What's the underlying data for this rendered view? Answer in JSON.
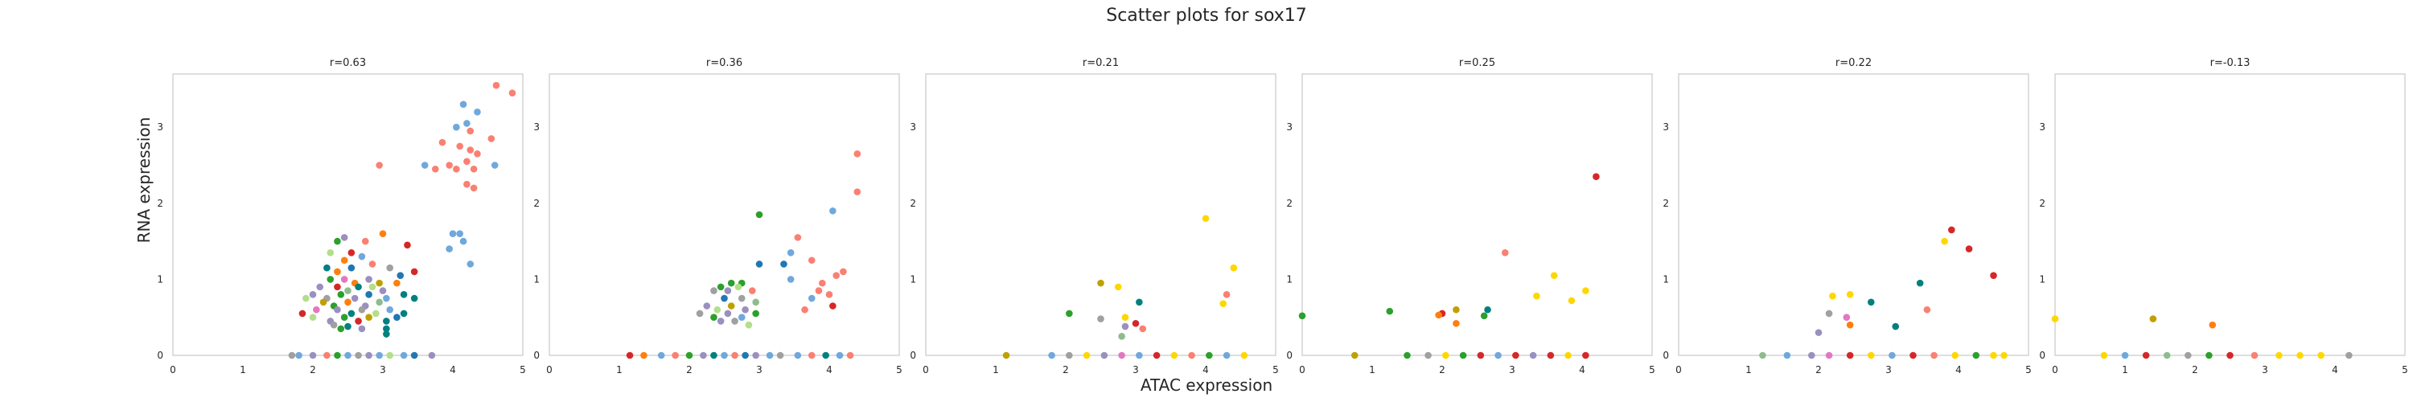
{
  "figure": {
    "title": "Scatter plots for sox17",
    "xlabel": "ATAC expression",
    "ylabel": "RNA expression"
  },
  "palette": [
    "#fa8072",
    "#6fa8dc",
    "#9b8fc0",
    "#2ca02c",
    "#d62728",
    "#ff7f0e",
    "#1f77b4",
    "#ffd700",
    "#b2df8a",
    "#008080",
    "#e377c2",
    "#c0a000",
    "#a0a0a0",
    "#8fbc8f"
  ],
  "chart_data": [
    {
      "type": "scatter",
      "title": "r=0.63",
      "xlim": [
        0,
        5
      ],
      "ylim": [
        0,
        3.7
      ],
      "xticks": [
        0,
        1,
        2,
        3,
        4,
        5
      ],
      "yticks": [
        0,
        1,
        2,
        3
      ],
      "grid": false,
      "points": [
        [
          4.62,
          3.55,
          0
        ],
        [
          4.85,
          3.45,
          0
        ],
        [
          4.15,
          3.3,
          1
        ],
        [
          4.35,
          3.2,
          1
        ],
        [
          4.2,
          3.05,
          1
        ],
        [
          4.05,
          3.0,
          1
        ],
        [
          4.25,
          2.95,
          0
        ],
        [
          3.85,
          2.8,
          0
        ],
        [
          4.55,
          2.85,
          0
        ],
        [
          4.1,
          2.75,
          0
        ],
        [
          4.25,
          2.7,
          0
        ],
        [
          4.35,
          2.65,
          0
        ],
        [
          4.2,
          2.55,
          0
        ],
        [
          3.95,
          2.5,
          0
        ],
        [
          4.05,
          2.45,
          0
        ],
        [
          4.3,
          2.45,
          0
        ],
        [
          4.6,
          2.5,
          1
        ],
        [
          3.75,
          2.45,
          0
        ],
        [
          3.6,
          2.5,
          1
        ],
        [
          2.95,
          2.5,
          0
        ],
        [
          4.2,
          2.25,
          0
        ],
        [
          4.3,
          2.2,
          0
        ],
        [
          4.0,
          1.6,
          1
        ],
        [
          4.1,
          1.6,
          1
        ],
        [
          4.15,
          1.5,
          1
        ],
        [
          3.95,
          1.4,
          1
        ],
        [
          4.25,
          1.2,
          1
        ],
        [
          2.45,
          1.55,
          2
        ],
        [
          2.35,
          1.5,
          3
        ],
        [
          2.75,
          1.5,
          0
        ],
        [
          3.0,
          1.6,
          5
        ],
        [
          2.25,
          1.35,
          8
        ],
        [
          2.55,
          1.35,
          4
        ],
        [
          2.7,
          1.3,
          1
        ],
        [
          3.35,
          1.45,
          4
        ],
        [
          2.45,
          1.25,
          5
        ],
        [
          2.2,
          1.15,
          9
        ],
        [
          2.35,
          1.1,
          5
        ],
        [
          2.55,
          1.15,
          6
        ],
        [
          2.85,
          1.2,
          0
        ],
        [
          3.1,
          1.15,
          12
        ],
        [
          3.45,
          1.1,
          4
        ],
        [
          2.25,
          1.0,
          3
        ],
        [
          2.45,
          1.0,
          10
        ],
        [
          2.6,
          0.95,
          5
        ],
        [
          2.8,
          1.0,
          2
        ],
        [
          2.95,
          0.95,
          11
        ],
        [
          3.25,
          1.05,
          6
        ],
        [
          2.1,
          0.9,
          2
        ],
        [
          2.35,
          0.9,
          4
        ],
        [
          2.5,
          0.85,
          13
        ],
        [
          2.65,
          0.9,
          9
        ],
        [
          2.85,
          0.9,
          8
        ],
        [
          3.0,
          0.85,
          2
        ],
        [
          3.2,
          0.95,
          5
        ],
        [
          2.0,
          0.8,
          2
        ],
        [
          2.2,
          0.75,
          12
        ],
        [
          2.4,
          0.8,
          3
        ],
        [
          2.6,
          0.75,
          2
        ],
        [
          2.8,
          0.8,
          6
        ],
        [
          3.05,
          0.75,
          1
        ],
        [
          3.3,
          0.8,
          9
        ],
        [
          1.9,
          0.75,
          8
        ],
        [
          2.15,
          0.7,
          11
        ],
        [
          2.3,
          0.65,
          3
        ],
        [
          2.5,
          0.7,
          5
        ],
        [
          2.75,
          0.65,
          2
        ],
        [
          2.95,
          0.7,
          13
        ],
        [
          3.45,
          0.75,
          9
        ],
        [
          2.05,
          0.6,
          10
        ],
        [
          2.35,
          0.6,
          2
        ],
        [
          2.55,
          0.55,
          9
        ],
        [
          2.7,
          0.6,
          12
        ],
        [
          2.9,
          0.55,
          8
        ],
        [
          3.1,
          0.6,
          1
        ],
        [
          3.3,
          0.55,
          9
        ],
        [
          1.85,
          0.55,
          4
        ],
        [
          2.0,
          0.5,
          8
        ],
        [
          2.25,
          0.45,
          2
        ],
        [
          2.45,
          0.5,
          3
        ],
        [
          2.65,
          0.45,
          4
        ],
        [
          2.8,
          0.5,
          11
        ],
        [
          3.05,
          0.45,
          9
        ],
        [
          3.2,
          0.5,
          6
        ],
        [
          2.3,
          0.4,
          12
        ],
        [
          2.5,
          0.38,
          9
        ],
        [
          2.7,
          0.35,
          2
        ],
        [
          3.05,
          0.35,
          9
        ],
        [
          3.05,
          0.28,
          9
        ],
        [
          2.4,
          0.35,
          3
        ],
        [
          1.7,
          0,
          12
        ],
        [
          1.8,
          0,
          1
        ],
        [
          2.0,
          0,
          2
        ],
        [
          2.2,
          0,
          0
        ],
        [
          2.35,
          0,
          3
        ],
        [
          2.5,
          0,
          1
        ],
        [
          2.65,
          0,
          12
        ],
        [
          2.8,
          0,
          2
        ],
        [
          2.95,
          0,
          1
        ],
        [
          3.1,
          0,
          8
        ],
        [
          3.3,
          0,
          1
        ],
        [
          3.45,
          0,
          6
        ],
        [
          3.7,
          0,
          2
        ]
      ]
    },
    {
      "type": "scatter",
      "title": "r=0.36",
      "xlim": [
        0,
        5
      ],
      "ylim": [
        0,
        3.7
      ],
      "xticks": [
        0,
        1,
        2,
        3,
        4,
        5
      ],
      "yticks": [
        0,
        1,
        2,
        3
      ],
      "grid": false,
      "points": [
        [
          4.4,
          2.65,
          0
        ],
        [
          4.4,
          2.15,
          0
        ],
        [
          4.05,
          1.9,
          1
        ],
        [
          3.0,
          1.85,
          3
        ],
        [
          3.55,
          1.55,
          0
        ],
        [
          3.45,
          1.35,
          1
        ],
        [
          3.75,
          1.25,
          0
        ],
        [
          3.35,
          1.2,
          6
        ],
        [
          3.0,
          1.2,
          6
        ],
        [
          4.1,
          1.05,
          0
        ],
        [
          4.2,
          1.1,
          0
        ],
        [
          3.45,
          1.0,
          1
        ],
        [
          3.9,
          0.95,
          0
        ],
        [
          3.85,
          0.85,
          0
        ],
        [
          4.0,
          0.8,
          0
        ],
        [
          3.75,
          0.75,
          1
        ],
        [
          4.05,
          0.65,
          4
        ],
        [
          3.65,
          0.6,
          0
        ],
        [
          2.6,
          0.95,
          3
        ],
        [
          2.45,
          0.9,
          3
        ],
        [
          2.75,
          0.95,
          3
        ],
        [
          2.55,
          0.85,
          2
        ],
        [
          2.35,
          0.85,
          12
        ],
        [
          2.7,
          0.9,
          8
        ],
        [
          2.9,
          0.85,
          0
        ],
        [
          2.5,
          0.75,
          6
        ],
        [
          2.75,
          0.75,
          12
        ],
        [
          2.95,
          0.7,
          13
        ],
        [
          2.25,
          0.65,
          2
        ],
        [
          2.4,
          0.6,
          8
        ],
        [
          2.6,
          0.65,
          11
        ],
        [
          2.8,
          0.6,
          2
        ],
        [
          2.15,
          0.55,
          12
        ],
        [
          2.35,
          0.5,
          3
        ],
        [
          2.55,
          0.55,
          2
        ],
        [
          2.75,
          0.5,
          1
        ],
        [
          2.95,
          0.55,
          3
        ],
        [
          2.45,
          0.45,
          2
        ],
        [
          2.65,
          0.45,
          12
        ],
        [
          2.85,
          0.4,
          8
        ],
        [
          1.15,
          0,
          4
        ],
        [
          1.35,
          0,
          5
        ],
        [
          1.6,
          0,
          1
        ],
        [
          1.8,
          0,
          0
        ],
        [
          2.0,
          0,
          3
        ],
        [
          2.2,
          0,
          2
        ],
        [
          2.35,
          0,
          9
        ],
        [
          2.5,
          0,
          1
        ],
        [
          2.65,
          0,
          0
        ],
        [
          2.8,
          0,
          6
        ],
        [
          2.95,
          0,
          2
        ],
        [
          3.15,
          0,
          1
        ],
        [
          3.3,
          0,
          12
        ],
        [
          3.55,
          0,
          1
        ],
        [
          3.75,
          0,
          0
        ],
        [
          3.95,
          0,
          9
        ],
        [
          4.15,
          0,
          1
        ],
        [
          4.3,
          0,
          0
        ]
      ]
    },
    {
      "type": "scatter",
      "title": "r=0.21",
      "xlim": [
        0,
        5
      ],
      "ylim": [
        0,
        3.7
      ],
      "xticks": [
        0,
        1,
        2,
        3,
        4,
        5
      ],
      "yticks": [
        0,
        1,
        2,
        3
      ],
      "grid": false,
      "points": [
        [
          4.0,
          1.8,
          7
        ],
        [
          4.4,
          1.15,
          7
        ],
        [
          2.5,
          0.95,
          11
        ],
        [
          2.75,
          0.9,
          7
        ],
        [
          4.3,
          0.8,
          0
        ],
        [
          3.05,
          0.7,
          9
        ],
        [
          4.25,
          0.68,
          7
        ],
        [
          2.05,
          0.55,
          3
        ],
        [
          2.85,
          0.5,
          7
        ],
        [
          2.5,
          0.48,
          12
        ],
        [
          3.0,
          0.42,
          4
        ],
        [
          2.85,
          0.38,
          2
        ],
        [
          3.1,
          0.35,
          0
        ],
        [
          2.8,
          0.25,
          13
        ],
        [
          1.15,
          0,
          11
        ],
        [
          1.8,
          0,
          1
        ],
        [
          2.05,
          0,
          12
        ],
        [
          2.3,
          0,
          7
        ],
        [
          2.55,
          0,
          2
        ],
        [
          2.8,
          0,
          10
        ],
        [
          3.05,
          0,
          1
        ],
        [
          3.3,
          0,
          4
        ],
        [
          3.55,
          0,
          7
        ],
        [
          3.8,
          0,
          0
        ],
        [
          4.05,
          0,
          3
        ],
        [
          4.3,
          0,
          1
        ],
        [
          4.55,
          0,
          7
        ]
      ]
    },
    {
      "type": "scatter",
      "title": "r=0.25",
      "xlim": [
        0,
        5
      ],
      "ylim": [
        0,
        3.7
      ],
      "xticks": [
        0,
        1,
        2,
        3,
        4,
        5
      ],
      "yticks": [
        0,
        1,
        2,
        3
      ],
      "grid": false,
      "points": [
        [
          4.2,
          2.35,
          4
        ],
        [
          2.9,
          1.35,
          0
        ],
        [
          3.6,
          1.05,
          7
        ],
        [
          4.05,
          0.85,
          7
        ],
        [
          3.35,
          0.78,
          7
        ],
        [
          3.85,
          0.72,
          7
        ],
        [
          2.65,
          0.6,
          9
        ],
        [
          1.25,
          0.58,
          3
        ],
        [
          2.0,
          0.55,
          4
        ],
        [
          1.95,
          0.53,
          5
        ],
        [
          2.2,
          0.6,
          11
        ],
        [
          2.6,
          0.52,
          3
        ],
        [
          0.0,
          0.52,
          3
        ],
        [
          2.2,
          0.42,
          5
        ],
        [
          0.75,
          0,
          11
        ],
        [
          1.5,
          0,
          3
        ],
        [
          1.8,
          0,
          12
        ],
        [
          2.05,
          0,
          7
        ],
        [
          2.3,
          0,
          3
        ],
        [
          2.55,
          0,
          4
        ],
        [
          2.8,
          0,
          1
        ],
        [
          3.05,
          0,
          4
        ],
        [
          3.3,
          0,
          2
        ],
        [
          3.55,
          0,
          4
        ],
        [
          3.8,
          0,
          7
        ],
        [
          4.05,
          0,
          4
        ]
      ]
    },
    {
      "type": "scatter",
      "title": "r=0.22",
      "xlim": [
        0,
        5
      ],
      "ylim": [
        0,
        3.7
      ],
      "xticks": [
        0,
        1,
        2,
        3,
        4,
        5
      ],
      "yticks": [
        0,
        1,
        2,
        3
      ],
      "grid": false,
      "points": [
        [
          3.9,
          1.65,
          4
        ],
        [
          4.15,
          1.4,
          4
        ],
        [
          3.8,
          1.5,
          7
        ],
        [
          4.5,
          1.05,
          4
        ],
        [
          3.45,
          0.95,
          9
        ],
        [
          2.45,
          0.8,
          7
        ],
        [
          2.2,
          0.78,
          7
        ],
        [
          2.75,
          0.7,
          9
        ],
        [
          3.55,
          0.6,
          0
        ],
        [
          2.4,
          0.5,
          10
        ],
        [
          2.0,
          0.3,
          2
        ],
        [
          2.45,
          0.4,
          5
        ],
        [
          3.1,
          0.38,
          9
        ],
        [
          2.15,
          0.55,
          12
        ],
        [
          1.2,
          0,
          13
        ],
        [
          1.55,
          0,
          1
        ],
        [
          1.9,
          0,
          2
        ],
        [
          2.15,
          0,
          10
        ],
        [
          2.45,
          0,
          4
        ],
        [
          2.75,
          0,
          7
        ],
        [
          3.05,
          0,
          1
        ],
        [
          3.35,
          0,
          4
        ],
        [
          3.65,
          0,
          0
        ],
        [
          3.95,
          0,
          7
        ],
        [
          4.25,
          0,
          3
        ],
        [
          4.5,
          0,
          7
        ],
        [
          4.65,
          0,
          7
        ]
      ]
    },
    {
      "type": "scatter",
      "title": "r=-0.13",
      "xlim": [
        0,
        5
      ],
      "ylim": [
        0,
        3.7
      ],
      "xticks": [
        0,
        1,
        2,
        3,
        4,
        5
      ],
      "yticks": [
        0,
        1,
        2,
        3
      ],
      "grid": false,
      "points": [
        [
          1.4,
          0.48,
          11
        ],
        [
          2.25,
          0.4,
          5
        ],
        [
          0.0,
          0.48,
          7
        ],
        [
          0.7,
          0,
          7
        ],
        [
          1.0,
          0,
          1
        ],
        [
          1.3,
          0,
          4
        ],
        [
          1.6,
          0,
          13
        ],
        [
          1.9,
          0,
          12
        ],
        [
          2.2,
          0,
          3
        ],
        [
          2.5,
          0,
          4
        ],
        [
          2.85,
          0,
          0
        ],
        [
          3.2,
          0,
          7
        ],
        [
          3.5,
          0,
          7
        ],
        [
          3.8,
          0,
          7
        ],
        [
          4.2,
          0,
          12
        ]
      ]
    }
  ]
}
